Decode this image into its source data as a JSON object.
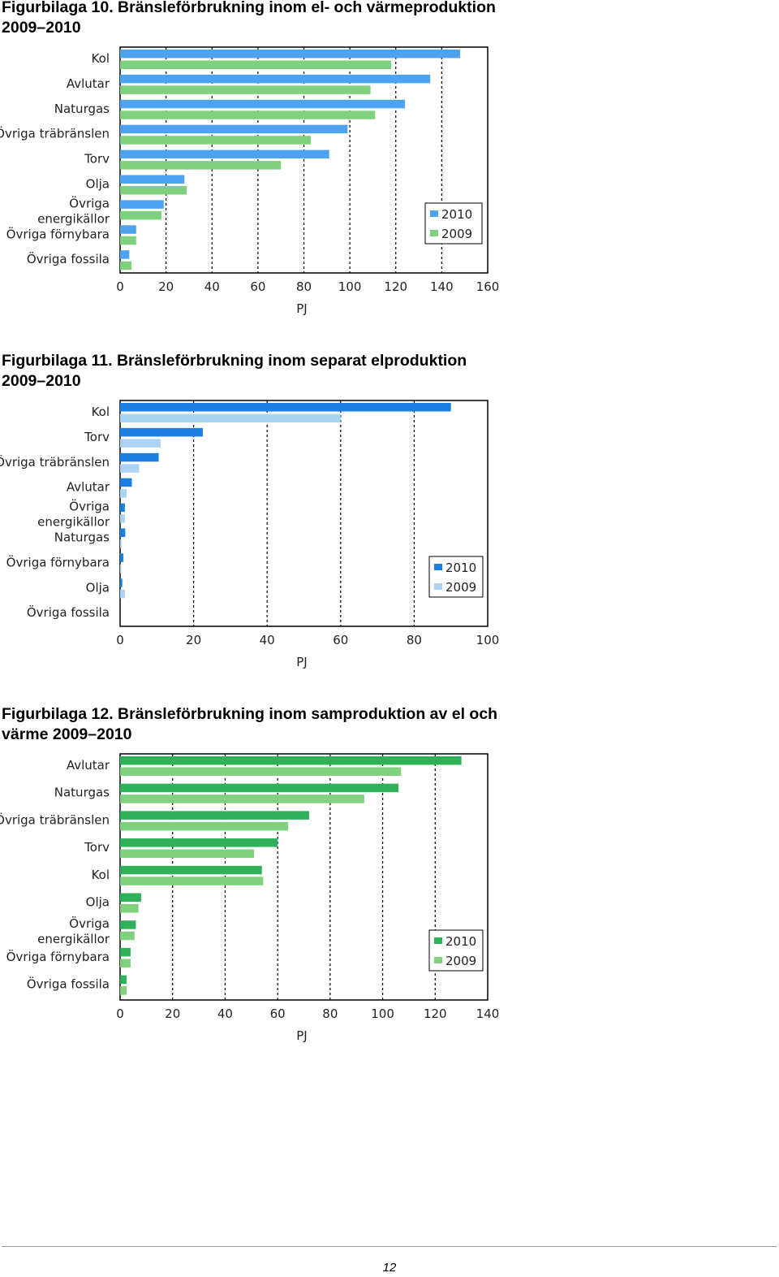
{
  "figures": [
    {
      "title_line1": "Figurbilaga 10. Bränsleförbrukning inom el- och värmeproduktion",
      "title_line2": "2009–2010"
    },
    {
      "title_line1": "Figurbilaga 11. Bränsleförbrukning inom separat elproduktion",
      "title_line2": "2009–2010"
    },
    {
      "title_line1": "Figurbilaga 12. Bränsleförbrukning inom samproduktion av el och",
      "title_line2": "värme 2009–2010"
    }
  ],
  "chart_data": [
    {
      "type": "bar",
      "orientation": "horizontal",
      "categories": [
        "Kol",
        "Avlutar",
        "Naturgas",
        "Övriga träbränslen",
        "Torv",
        "Olja",
        "Övriga energikällor",
        "Övriga förnybara",
        "Övriga fossila"
      ],
      "series": [
        {
          "name": "2010",
          "values": [
            148,
            135,
            124,
            99,
            91,
            28,
            19,
            7,
            4
          ],
          "color": "#4da3f0"
        },
        {
          "name": "2009",
          "values": [
            118,
            109,
            111,
            83,
            70,
            29,
            18,
            7,
            5
          ],
          "color": "#7fd17f"
        }
      ],
      "xlabel": "PJ",
      "xlim": [
        0,
        160
      ],
      "xticks": [
        0,
        20,
        40,
        60,
        80,
        100,
        120,
        140,
        160
      ],
      "grid": "vertical dashed",
      "legend": "bottom-right"
    },
    {
      "type": "bar",
      "orientation": "horizontal",
      "categories": [
        "Kol",
        "Torv",
        "Övriga träbränslen",
        "Avlutar",
        "Övriga energikällor",
        "Naturgas",
        "Övriga förnybara",
        "Olja",
        "Övriga fossila"
      ],
      "series": [
        {
          "name": "2010",
          "values": [
            90,
            22.5,
            10.5,
            3.2,
            1.3,
            1.4,
            0.9,
            0.6,
            0
          ],
          "color": "#1a7fe0"
        },
        {
          "name": "2009",
          "values": [
            60,
            11,
            5.2,
            1.8,
            1.3,
            0.4,
            0.2,
            1.3,
            0
          ],
          "color": "#aad4f2"
        }
      ],
      "xlabel": "PJ",
      "xlim": [
        0,
        100
      ],
      "xticks": [
        0,
        20,
        40,
        60,
        80,
        100
      ],
      "grid": "vertical dashed",
      "legend": "bottom-right"
    },
    {
      "type": "bar",
      "orientation": "horizontal",
      "categories": [
        "Avlutar",
        "Naturgas",
        "Övriga träbränslen",
        "Torv",
        "Kol",
        "Olja",
        "Övriga energikällor",
        "Övriga förnybara",
        "Övriga fossila"
      ],
      "series": [
        {
          "name": "2010",
          "values": [
            130,
            106,
            72,
            60,
            54,
            8,
            6,
            4,
            2.5
          ],
          "color": "#2fb15a"
        },
        {
          "name": "2009",
          "values": [
            107,
            93,
            64,
            51,
            54.5,
            7,
            5.5,
            4,
            2.5
          ],
          "color": "#7fd17f"
        }
      ],
      "xlabel": "PJ",
      "xlim": [
        0,
        140
      ],
      "xticks": [
        0,
        20,
        40,
        60,
        80,
        100,
        120,
        140
      ],
      "grid": "vertical dashed",
      "legend": "bottom-right"
    }
  ],
  "footer": {
    "page_number": "12"
  }
}
